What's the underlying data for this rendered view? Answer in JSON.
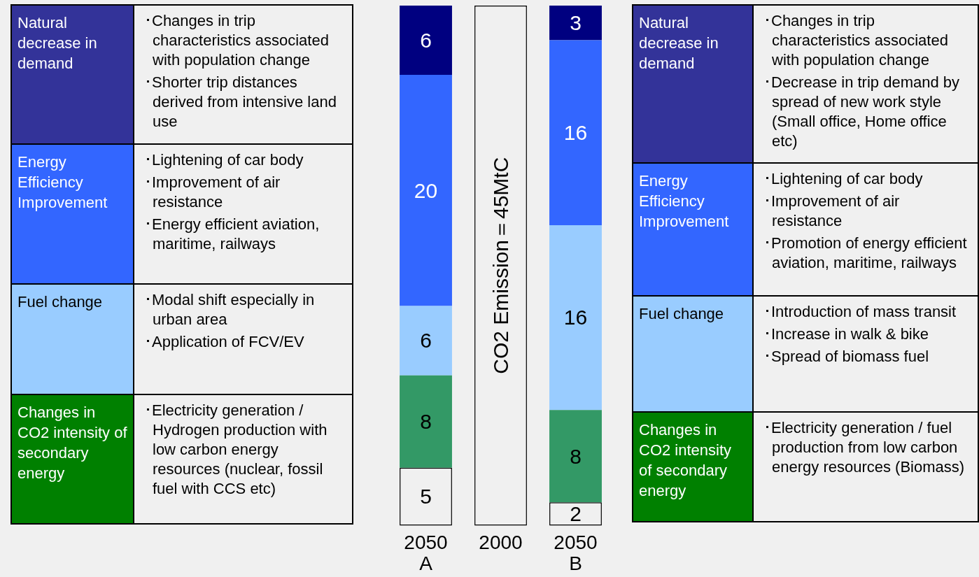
{
  "chart_data": [
    {
      "type": "other",
      "categories": [
        "Natural decrease in demand",
        "Energy Efficiency Improvement",
        "Fuel change",
        "Changes in CO2 intensity of secondary energy"
      ],
      "colors": [
        "#333399",
        "#3366ff",
        "#99ccff",
        "#008000"
      ],
      "cell_labels": [
        [
          "･Changes in trip characteristics associated with population change",
          "･Shorter trip distances derived from intensive land use"
        ],
        [
          "･Lightening of car body",
          "･Improvement of air resistance",
          "･Energy efficient aviation, maritime, railways"
        ],
        [
          "･Modal shift especially in urban area",
          "･Application of FCV/EV"
        ],
        [
          "･Electricity generation / Hydrogen production with low carbon energy resources (nuclear, fossil fuel with CCS etc)"
        ]
      ]
    },
    {
      "type": "bar",
      "stacked": true,
      "tick_labels": "x",
      "categories": [
        "2050 A",
        "2000",
        "2050 B"
      ],
      "series": [
        {
          "color": "#f0f0f0",
          "values": [
            5,
            null,
            2
          ],
          "value_labels": [
            "5",
            null,
            "2"
          ]
        },
        {
          "color": "#339966",
          "values": [
            8,
            null,
            8
          ],
          "value_labels": [
            "8",
            null,
            "8"
          ]
        },
        {
          "color": "#99ccff",
          "values": [
            6,
            null,
            16
          ],
          "value_labels": [
            "6",
            null,
            "16"
          ]
        },
        {
          "color": "#3366ff",
          "values": [
            20,
            null,
            16
          ],
          "value_labels": [
            "20",
            null,
            "16"
          ]
        },
        {
          "color": "#000080",
          "values": [
            6,
            null,
            3
          ],
          "value_labels": [
            "6",
            null,
            "3"
          ]
        },
        {
          "color": "#f0f0f0",
          "values": [
            null,
            45,
            null
          ],
          "value_labels": [
            null,
            "CO2 Emission＝45MtC",
            null
          ]
        }
      ]
    },
    {
      "type": "other",
      "categories": [
        "Natural decrease in demand",
        "Energy Efficiency Improvement",
        "Fuel change",
        "Changes in CO2 intensity of secondary energy"
      ],
      "colors": [
        "#333399",
        "#3366ff",
        "#99ccff",
        "#008000"
      ],
      "cell_labels": [
        [
          "･Changes in trip characteristics associated with population change",
          "･Decrease in trip demand by spread of new work style (Small office, Home office etc)"
        ],
        [
          "･Lightening of car body",
          "･Improvement of air resistance",
          "･Promotion of energy efficient aviation, maritime, railways"
        ],
        [
          "･Introduction of mass transit",
          "･Increase in walk & bike",
          "･Spread of biomass fuel"
        ],
        [
          "･Electricity generation / fuel production from low carbon energy resources (Biomass)"
        ]
      ]
    }
  ]
}
